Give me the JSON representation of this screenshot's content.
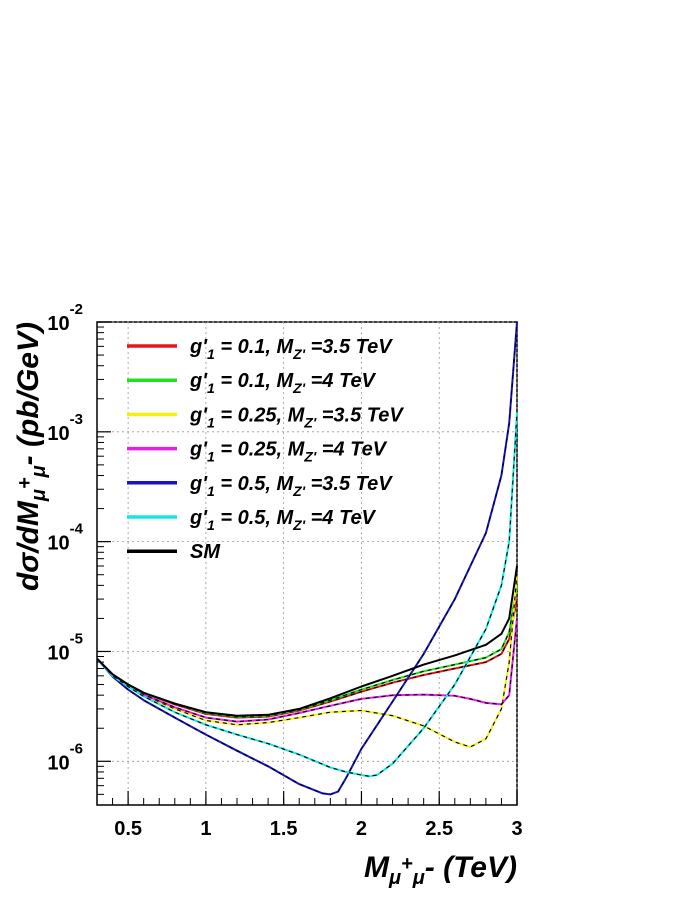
{
  "chart_data": {
    "type": "line",
    "x_scale": "linear",
    "y_scale": "log",
    "xlim": [
      0.3,
      3.0
    ],
    "ylim": [
      4e-07,
      0.01
    ],
    "grid": true,
    "legend_placement": "top-left",
    "x_ticks": [
      "0.5",
      "1",
      "1.5",
      "2",
      "2.5",
      "3"
    ],
    "y_ticks": [
      {
        "base": "10",
        "exp": "-6"
      },
      {
        "base": "10",
        "exp": "-5"
      },
      {
        "base": "10",
        "exp": "-4"
      },
      {
        "base": "10",
        "exp": "-3"
      },
      {
        "base": "10",
        "exp": "-2"
      }
    ],
    "xlabel": {
      "main": "M",
      "sub1": "μ",
      "sup": "+",
      "sub2": "μ",
      "tail": "- (TeV)"
    },
    "ylabel": {
      "pre": "dσ/dM",
      "sub1": "μ",
      "sup": "+",
      "sub2": "μ",
      "tail": "- (pb/GeV)"
    },
    "series": [
      {
        "color": "#e8161b",
        "label": {
          "pre": "g'",
          "sub": "1",
          "mid": " = 0.1, M",
          "sub2": "Z'",
          "post": " =3.5 TeV"
        },
        "x": [
          0.3,
          0.4,
          0.5,
          0.6,
          0.8,
          1.0,
          1.2,
          1.4,
          1.6,
          1.8,
          2.0,
          2.2,
          2.4,
          2.6,
          2.8,
          2.9,
          2.95,
          3.0
        ],
        "y": [
          8.6e-06,
          6.2e-06,
          5e-06,
          4.2e-06,
          3.3e-06,
          2.7e-06,
          2.5e-06,
          2.55e-06,
          2.9e-06,
          3.5e-06,
          4.3e-06,
          5.2e-06,
          6.1e-06,
          7e-06,
          8e-06,
          9.5e-06,
          1.3e-05,
          3e-05
        ]
      },
      {
        "color": "#1fe01f",
        "label": {
          "pre": "g'",
          "sub": "1",
          "mid": " = 0.1, M",
          "sub2": "Z'",
          "post": " =4 TeV"
        },
        "x": [
          0.3,
          0.4,
          0.5,
          0.6,
          0.8,
          1.0,
          1.2,
          1.4,
          1.6,
          1.8,
          2.0,
          2.2,
          2.4,
          2.6,
          2.8,
          2.9,
          2.95,
          3.0
        ],
        "y": [
          8.6e-06,
          6.2e-06,
          5e-06,
          4.2e-06,
          3.35e-06,
          2.75e-06,
          2.55e-06,
          2.6e-06,
          2.95e-06,
          3.6e-06,
          4.5e-06,
          5.5e-06,
          6.6e-06,
          7.6e-06,
          8.8e-06,
          1.05e-05,
          1.5e-05,
          4e-05
        ]
      },
      {
        "color": "#f5f014",
        "label": {
          "pre": "g'",
          "sub": "1",
          "mid": " = 0.25, M",
          "sub2": "Z'",
          "post": " =3.5 TeV"
        },
        "x": [
          0.3,
          0.4,
          0.5,
          0.6,
          0.8,
          1.0,
          1.2,
          1.4,
          1.6,
          1.8,
          2.0,
          2.2,
          2.4,
          2.6,
          2.7,
          2.8,
          2.9,
          2.95,
          3.0
        ],
        "y": [
          8.6e-06,
          6.1e-06,
          4.9e-06,
          4e-06,
          3e-06,
          2.35e-06,
          2.15e-06,
          2.25e-06,
          2.5e-06,
          2.8e-06,
          2.9e-06,
          2.6e-06,
          2.1e-06,
          1.5e-06,
          1.35e-06,
          1.6e-06,
          3e-06,
          8e-06,
          5e-05
        ]
      },
      {
        "color": "#e61ee6",
        "label": {
          "pre": "g'",
          "sub": "1",
          "mid": " = 0.25, M",
          "sub2": "Z'",
          "post": " =4 TeV"
        },
        "x": [
          0.3,
          0.4,
          0.5,
          0.6,
          0.8,
          1.0,
          1.2,
          1.4,
          1.6,
          1.8,
          2.0,
          2.2,
          2.4,
          2.6,
          2.7,
          2.8,
          2.9,
          2.95,
          3.0
        ],
        "y": [
          8.6e-06,
          6.1e-06,
          4.9e-06,
          4.05e-06,
          3.1e-06,
          2.5e-06,
          2.3e-06,
          2.4e-06,
          2.75e-06,
          3.2e-06,
          3.7e-06,
          4e-06,
          4.05e-06,
          3.95e-06,
          3.7e-06,
          3.4e-06,
          3.3e-06,
          4e-06,
          2e-05
        ]
      },
      {
        "color": "#1414c8",
        "label": {
          "pre": "g'",
          "sub": "1",
          "mid": " = 0.5, M",
          "sub2": "Z'",
          "post": " =3.5 TeV"
        },
        "x": [
          0.3,
          0.4,
          0.5,
          0.6,
          0.8,
          1.0,
          1.2,
          1.4,
          1.6,
          1.75,
          1.8,
          1.85,
          1.9,
          2.0,
          2.2,
          2.4,
          2.6,
          2.8,
          2.9,
          2.95,
          3.0
        ],
        "y": [
          8.6e-06,
          5.9e-06,
          4.5e-06,
          3.6e-06,
          2.5e-06,
          1.75e-06,
          1.25e-06,
          9e-07,
          6.2e-07,
          5.1e-07,
          5e-07,
          5.3e-07,
          7e-07,
          1.3e-06,
          3.5e-06,
          9.5e-06,
          3e-05,
          0.00012,
          0.0004,
          0.0012,
          0.01
        ]
      },
      {
        "color": "#14e6e6",
        "label": {
          "pre": "g'",
          "sub": "1",
          "mid": " = 0.5, M",
          "sub2": "Z'",
          "post": " =4 TeV"
        },
        "x": [
          0.3,
          0.4,
          0.5,
          0.6,
          0.8,
          1.0,
          1.2,
          1.4,
          1.6,
          1.8,
          1.9,
          2.0,
          2.05,
          2.1,
          2.2,
          2.4,
          2.6,
          2.8,
          2.9,
          2.95,
          3.0
        ],
        "y": [
          8.6e-06,
          6e-06,
          4.8e-06,
          3.9e-06,
          2.8e-06,
          2.15e-06,
          1.75e-06,
          1.45e-06,
          1.15e-06,
          8.8e-07,
          8e-07,
          7.5e-07,
          7.3e-07,
          7.5e-07,
          9.5e-07,
          2e-06,
          5e-06,
          1.6e-05,
          4e-05,
          0.0001,
          0.0015
        ]
      },
      {
        "color": "#000000",
        "label": {
          "pre": "SM",
          "sub": "",
          "mid": "",
          "sub2": "",
          "post": ""
        },
        "x": [
          0.3,
          0.4,
          0.5,
          0.6,
          0.8,
          1.0,
          1.2,
          1.4,
          1.6,
          1.8,
          2.0,
          2.2,
          2.4,
          2.6,
          2.8,
          2.9,
          2.95,
          3.0
        ],
        "y": [
          8.6e-06,
          6.2e-06,
          5e-06,
          4.2e-06,
          3.35e-06,
          2.8e-06,
          2.6e-06,
          2.65e-06,
          3e-06,
          3.75e-06,
          4.8e-06,
          6e-06,
          7.6e-06,
          9.2e-06,
          1.15e-05,
          1.45e-05,
          2e-05,
          6e-05
        ]
      }
    ]
  }
}
